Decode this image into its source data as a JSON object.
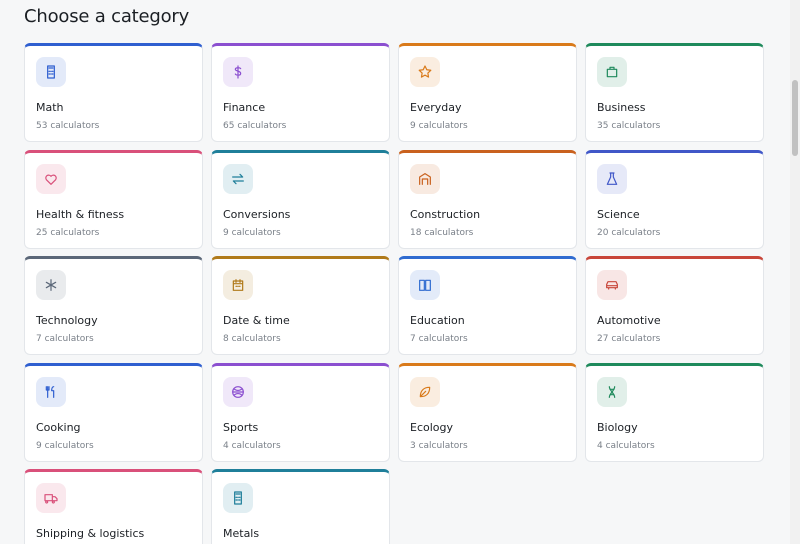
{
  "header": {
    "title": "Choose a category"
  },
  "categories": [
    {
      "name": "Math",
      "count": "53 calculators",
      "color": "#2f5fd0"
    },
    {
      "name": "Finance",
      "count": "65 calculators",
      "color": "#8b4fd0"
    },
    {
      "name": "Everyday",
      "count": "9 calculators",
      "color": "#d97a1a"
    },
    {
      "name": "Business",
      "count": "35 calculators",
      "color": "#1f8a5c"
    },
    {
      "name": "Health & fitness",
      "count": "25 calculators",
      "color": "#d9507a"
    },
    {
      "name": "Conversions",
      "count": "9 calculators",
      "color": "#1f7f9a"
    },
    {
      "name": "Construction",
      "count": "18 calculators",
      "color": "#c9611e"
    },
    {
      "name": "Science",
      "count": "20 calculators",
      "color": "#4057c8"
    },
    {
      "name": "Technology",
      "count": "7 calculators",
      "color": "#5b6778"
    },
    {
      "name": "Date & time",
      "count": "8 calculators",
      "color": "#b07a1a"
    },
    {
      "name": "Education",
      "count": "7 calculators",
      "color": "#2f6bd0"
    },
    {
      "name": "Automotive",
      "count": "27 calculators",
      "color": "#c8463a"
    },
    {
      "name": "Cooking",
      "count": "9 calculators",
      "color": "#2f5fd0"
    },
    {
      "name": "Sports",
      "count": "4 calculators",
      "color": "#8b4fd0"
    },
    {
      "name": "Ecology",
      "count": "3 calculators",
      "color": "#d97a1a"
    },
    {
      "name": "Biology",
      "count": "4 calculators",
      "color": "#1f8a5c"
    },
    {
      "name": "Shipping & logistics",
      "color": "#d9507a"
    },
    {
      "name": "Metals",
      "color": "#1f7f9a"
    }
  ]
}
